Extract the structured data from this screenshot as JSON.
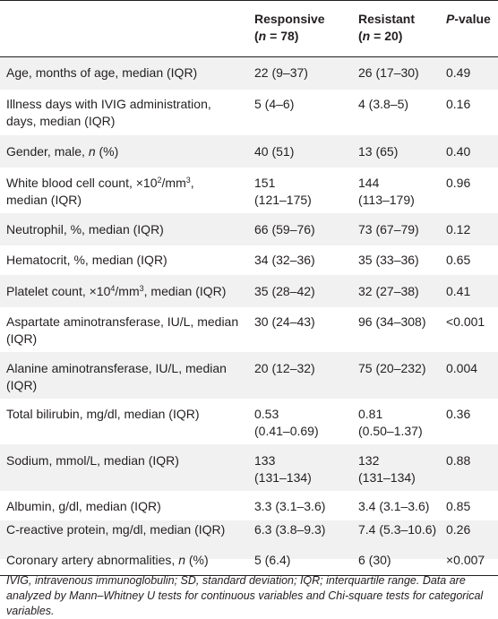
{
  "header": {
    "responsive_label": "Responsive",
    "responsive_n_open": "(",
    "responsive_n_var": "n",
    "responsive_n_val": " = 78)",
    "resistant_label": "Resistant",
    "resistant_n_open": "(",
    "resistant_n_var": "n",
    "resistant_n_val": " = 20)",
    "p_var": "P",
    "p_rest": "-value"
  },
  "rows": [
    {
      "label": "Age, months of age, median (IQR)",
      "responsive": "22 (9–37)",
      "resistant": "26 (17–30)",
      "p": "0.49"
    },
    {
      "label": "Illness days with IVIG administration, days, median (IQR)",
      "responsive": "5 (4–6)",
      "resistant": "4 (3.8–5)",
      "p": "0.16"
    },
    {
      "label_pre": "Gender, male, ",
      "label_it": "n",
      "label_post": " (%)",
      "responsive": "40 (51)",
      "resistant": "13 (65)",
      "p": "0.40"
    },
    {
      "label_pre": "White blood cell count, ×10",
      "label_sup": "2",
      "label_mid": "/mm",
      "label_sup2": "3",
      "label_post": ",",
      "label_line2": "median (IQR)",
      "responsive": "151",
      "responsive_line2": "(121–175)",
      "resistant": "144",
      "resistant_line2": "(113–179)",
      "p": "0.96"
    },
    {
      "label": "Neutrophil, %, median (IQR)",
      "responsive": "66 (59–76)",
      "resistant": "73 (67–79)",
      "p": "0.12"
    },
    {
      "label": "Hematocrit, %, median (IQR)",
      "responsive": "34 (32–36)",
      "resistant": "35 (33–36)",
      "p": "0.65"
    },
    {
      "label_pre": "Platelet count, ×10",
      "label_sup": "4",
      "label_mid": "/mm",
      "label_sup2": "3",
      "label_post": ", median (IQR)",
      "responsive": "35 (28–42)",
      "resistant": "32 (27–38)",
      "p": "0.41"
    },
    {
      "label": "Aspartate aminotransferase, IU/L, median (IQR)",
      "responsive": "30 (24–43)",
      "resistant": "96 (34–308)",
      "p": "<0.001"
    },
    {
      "label": "Alanine aminotransferase, IU/L, median (IQR)",
      "responsive": "20 (12–32)",
      "resistant": "75 (20–232)",
      "p": "0.004"
    },
    {
      "label": "Total bilirubin, mg/dl, median (IQR)",
      "responsive": "0.53",
      "responsive_line2": "(0.41–0.69)",
      "resistant": "0.81",
      "resistant_line2": "(0.50–1.37)",
      "p": "0.36"
    },
    {
      "label": "Sodium, mmol/L, median (IQR)",
      "responsive": "133",
      "responsive_line2": "(131–134)",
      "resistant": "132",
      "resistant_line2": "(131–134)",
      "p": "0.88"
    },
    {
      "label": "Albumin, g/dl, median (IQR)",
      "responsive": "3.3 (3.1–3.6)",
      "resistant": "3.4 (3.1–3.6)",
      "p": "0.85"
    },
    {
      "label": "C-reactive protein, mg/dl, median (IQR)",
      "responsive": "6.3 (3.8–9.3)",
      "resistant": "7.4 (5.3–10.6)",
      "p": "0.26"
    },
    {
      "label_pre": "Coronary artery abnormalities, ",
      "label_it": "n",
      "label_post": " (%)",
      "responsive": "5 (6.4)",
      "resistant": "6 (30)",
      "p": "×0.007"
    }
  ],
  "footnote": "IVIG, intravenous immunoglobulin; SD, standard deviation; IQR; interquartile range. Data are analyzed by Mann–Whitney U tests for continuous variables and Chi-square tests for categorical variables.",
  "colors": {
    "band": "#f1f1f2",
    "text": "#231f20",
    "rule": "#231f20"
  }
}
